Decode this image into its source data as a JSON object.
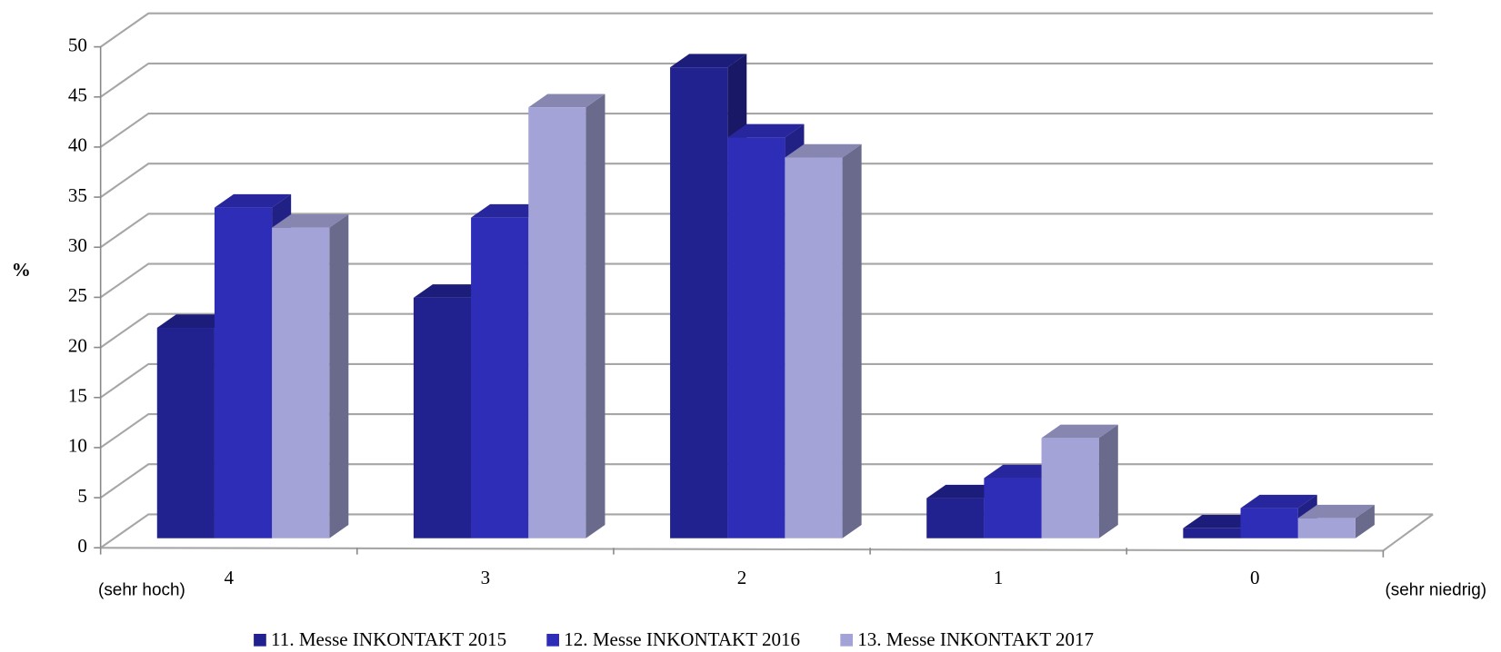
{
  "chart_data": {
    "type": "bar3d",
    "y_label": "%",
    "categories": [
      "4",
      "3",
      "2",
      "1",
      "0"
    ],
    "annotations": [
      "(sehr hoch)",
      "(sehr niedrig)"
    ],
    "series": [
      {
        "name": "11. Messe INKONTAKT 2015",
        "color": "#21228f",
        "values": [
          21,
          24,
          47,
          4,
          1
        ]
      },
      {
        "name": "12. Messe INKONTAKT 2016",
        "color": "#2e2db8",
        "values": [
          33,
          32,
          40,
          6,
          3
        ]
      },
      {
        "name": "13. Messe INKONTAKT 2017",
        "color": "#a3a3d8",
        "values": [
          31,
          43,
          38,
          10,
          2
        ]
      }
    ],
    "ylim": [
      0,
      50
    ],
    "yticks": [
      0,
      5,
      10,
      15,
      20,
      25,
      30,
      35,
      40,
      45,
      50
    ],
    "grid": true,
    "legend": "bottom"
  }
}
